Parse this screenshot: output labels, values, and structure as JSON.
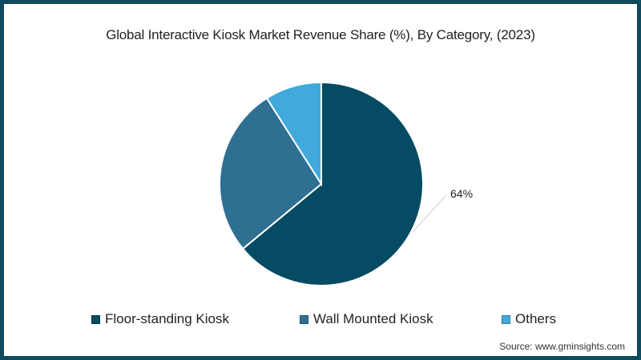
{
  "chart_data": {
    "type": "pie",
    "title": "Global Interactive Kiosk Market Revenue Share (%), By Category, (2023)",
    "categories": [
      "Floor-standing Kiosk",
      "Wall Mounted Kiosk",
      "Others"
    ],
    "values": [
      64,
      27,
      9
    ],
    "colors": [
      "#054b63",
      "#2f6f92",
      "#41a9dc"
    ],
    "data_labels": [
      {
        "category": "Floor-standing Kiosk",
        "text": "64%"
      }
    ],
    "legend_position": "bottom",
    "start_angle": "12 o'clock, clockwise"
  },
  "title": "Global Interactive Kiosk Market Revenue Share (%), By Category, (2023)",
  "legend": [
    {
      "label": "Floor-standing Kiosk",
      "color": "#054b63"
    },
    {
      "label": "Wall Mounted Kiosk",
      "color": "#2f6f92"
    },
    {
      "label": "Others",
      "color": "#41a9dc"
    }
  ],
  "label_64": "64%",
  "source": "Source: www.gminsights.com",
  "frame_color": "#0f4a5f"
}
